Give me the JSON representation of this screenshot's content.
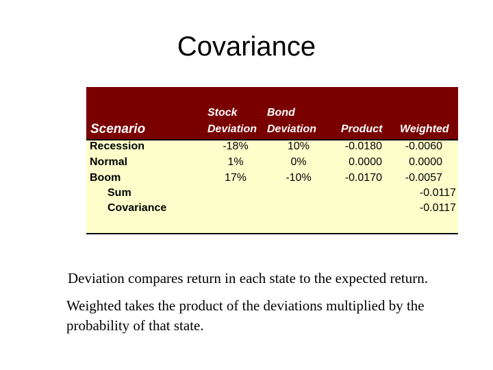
{
  "title": "Covariance",
  "table": {
    "headers": {
      "scenario": "Scenario",
      "stock_line1": "Stock",
      "stock_line2": "Deviation",
      "bond_line1": "Bond",
      "bond_line2": "Deviation",
      "product": "Product",
      "weighted": "Weighted"
    },
    "rows": [
      {
        "scenario": "Recession",
        "stock": "-18%",
        "bond": "10%",
        "product": "-0.0180",
        "weighted": "-0.0060"
      },
      {
        "scenario": "Normal",
        "stock": "1%",
        "bond": "0%",
        "product": "0.0000",
        "weighted": "0.0000"
      },
      {
        "scenario": "Boom",
        "stock": "17%",
        "bond": "-10%",
        "product": "-0.0170",
        "weighted": "-0.0057"
      }
    ],
    "sum_label": "Sum",
    "sum_value": "-0.0117",
    "covariance_label": "Covariance",
    "covariance_value": "-0.0117"
  },
  "text": {
    "line1": "Deviation compares return in each state to the expected return.",
    "line2": "Weighted takes the product of the deviations multiplied by the",
    "line3": "probability of that state."
  },
  "colors": {
    "header_bg": "#7a0000",
    "table_bg": "#ffffcc"
  }
}
